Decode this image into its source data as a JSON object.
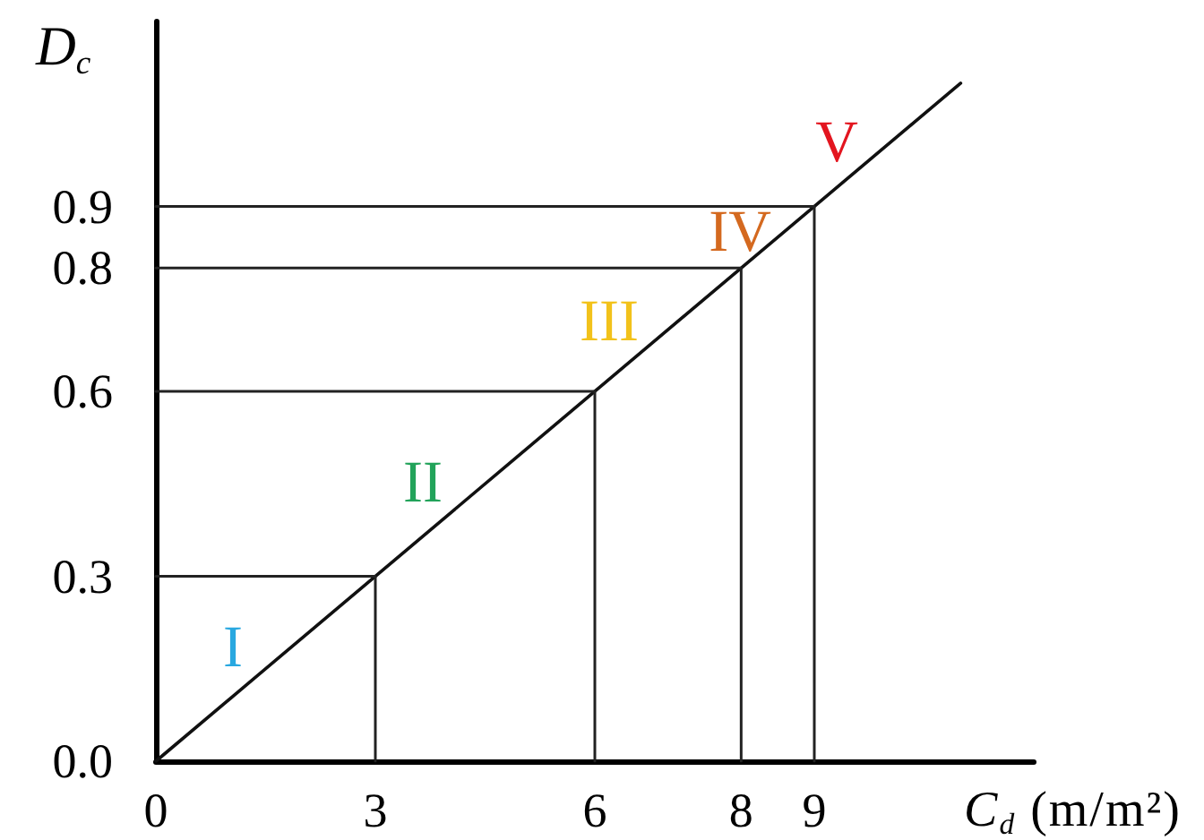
{
  "chart_data": {
    "type": "line",
    "xlabel": "C$_{d}$ (m/m²)",
    "ylabel": "D$_{c}$",
    "series": [
      {
        "x": [
          0,
          11
        ],
        "values": [
          0,
          1.1
        ],
        "color": "#111111"
      },
      {
        "x": [
          0,
          3,
          3
        ],
        "values": [
          0.3,
          0.3,
          0
        ],
        "color": "#222222"
      },
      {
        "x": [
          0,
          6,
          6
        ],
        "values": [
          0.6,
          0.6,
          0
        ],
        "color": "#222222"
      },
      {
        "x": [
          0,
          8,
          8
        ],
        "values": [
          0.8,
          0.8,
          0
        ],
        "color": "#222222"
      },
      {
        "x": [
          0,
          9,
          9
        ],
        "values": [
          0.9,
          0.9,
          0
        ],
        "color": "#222222"
      }
    ],
    "xlim": [
      0,
      12
    ],
    "xticks": [
      0,
      3,
      6,
      8,
      9
    ],
    "ylim": [
      0,
      1.2
    ],
    "yticks": [
      {
        "value": 0,
        "label": "0.0"
      },
      0.3,
      0.6,
      0.8,
      0.9
    ],
    "annotations": [
      "I",
      "II",
      "III",
      "IV",
      "V"
    ],
    "grid": false,
    "marker": "none",
    "line_style": "solid"
  }
}
